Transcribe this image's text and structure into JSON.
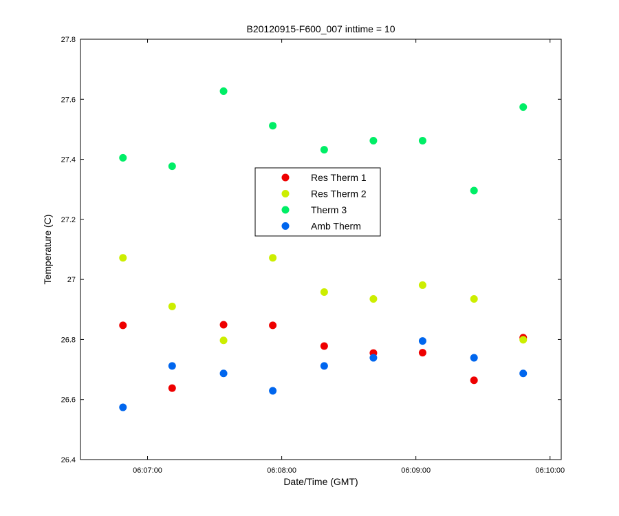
{
  "chart_data": {
    "type": "scatter",
    "title": "B20120915-F600_007 inttime = 10",
    "xlabel": "Date/Time (GMT)",
    "ylabel": "Temperature (C)",
    "xlim": [
      "06:06:30",
      "06:10:05"
    ],
    "ylim": [
      26.4,
      27.8
    ],
    "x_ticks": [
      "06:07:00",
      "06:08:00",
      "06:09:00",
      "06:10:00"
    ],
    "y_ticks": [
      "26.4",
      "26.6",
      "26.8",
      "27",
      "27.2",
      "27.4",
      "27.6",
      "27.8"
    ],
    "grid": false,
    "legend_position": "center",
    "x": [
      "06:06:49",
      "06:07:11",
      "06:07:34",
      "06:07:56",
      "06:08:19",
      "06:08:41",
      "06:09:03",
      "06:09:26",
      "06:09:48"
    ],
    "series": [
      {
        "name": "Res Therm 1",
        "color": "#ee0000",
        "values": [
          26.847,
          26.638,
          26.849,
          26.847,
          26.778,
          26.755,
          26.756,
          26.664,
          26.806
        ]
      },
      {
        "name": "Res Therm 2",
        "color": "#ccee00",
        "values": [
          27.072,
          26.91,
          26.797,
          27.072,
          26.958,
          26.935,
          26.981,
          26.935,
          26.799
        ]
      },
      {
        "name": "Therm 3",
        "color": "#00ee66",
        "values": [
          27.405,
          27.377,
          27.627,
          27.512,
          27.432,
          27.462,
          27.462,
          27.296,
          27.574
        ]
      },
      {
        "name": "Amb Therm",
        "color": "#0066ee",
        "values": [
          26.574,
          26.712,
          26.687,
          26.629,
          26.712,
          26.739,
          26.795,
          26.739,
          26.687
        ]
      }
    ]
  }
}
